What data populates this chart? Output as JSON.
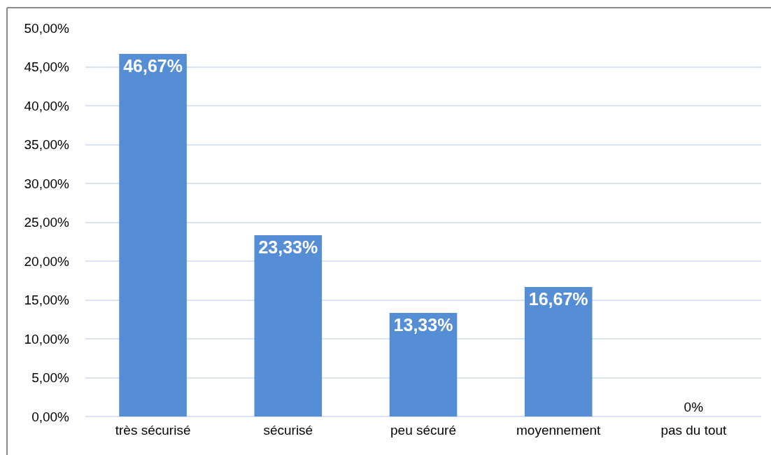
{
  "chart_data": {
    "type": "bar",
    "categories": [
      "très sécurisé",
      "sécurisé",
      "peu sécuré",
      "moyennement",
      "pas du tout"
    ],
    "values": [
      46.67,
      23.33,
      13.33,
      16.67,
      0
    ],
    "value_labels": [
      "46,67%",
      "23,33%",
      "13,33%",
      "16,67%",
      "0%"
    ],
    "color": "#558ed5",
    "ylim": [
      0,
      50
    ],
    "yticks": [
      {
        "value": 0,
        "label": "0,00%"
      },
      {
        "value": 5,
        "label": "5,00%"
      },
      {
        "value": 10,
        "label": "10,00%"
      },
      {
        "value": 15,
        "label": "15,00%"
      },
      {
        "value": 20,
        "label": "20,00%"
      },
      {
        "value": 25,
        "label": "25,00%"
      },
      {
        "value": 30,
        "label": "30,00%"
      },
      {
        "value": 35,
        "label": "35,00%"
      },
      {
        "value": 40,
        "label": "40,00%"
      },
      {
        "value": 45,
        "label": "45,00%"
      },
      {
        "value": 50,
        "label": "50,00%"
      }
    ],
    "grid": "y"
  }
}
